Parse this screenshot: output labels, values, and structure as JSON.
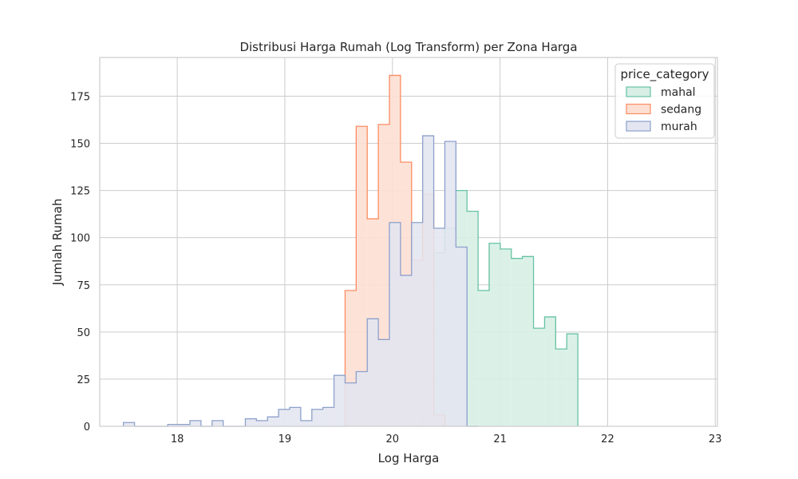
{
  "chart_data": {
    "type": "histogram-step",
    "title": "Distribusi Harga Rumah (Log Transform) per Zona Harga",
    "xlabel": "Log Harga",
    "ylabel": "Jumlah Rumah",
    "xlim": [
      17.28,
      23.02
    ],
    "ylim": [
      0,
      195.5
    ],
    "xticks": [
      18,
      19,
      20,
      21,
      22,
      23
    ],
    "yticks": [
      0,
      25,
      50,
      75,
      100,
      125,
      150,
      175
    ],
    "grid": true,
    "legend": {
      "title": "price_category",
      "position": "top-right"
    },
    "bin_start": 17.5,
    "bin_width": 0.103,
    "series": [
      {
        "name": "mahal",
        "color": "#66c2a5",
        "fill": "#d7efe6",
        "start_bin": 27,
        "counts": [
          6,
          92,
          105,
          125,
          114,
          72,
          97,
          94,
          89,
          90,
          52,
          58,
          41,
          49
        ]
      },
      {
        "name": "sedang",
        "color": "#fc8d62",
        "fill": "#fddfd3",
        "start_bin": 20,
        "counts": [
          72,
          159,
          110,
          160,
          186,
          140,
          88,
          123,
          6
        ]
      },
      {
        "name": "murah",
        "color": "#8da0cb",
        "fill": "#e3e6f1",
        "start_bin": 0,
        "counts": [
          2,
          0,
          0,
          0,
          1,
          1,
          3,
          0,
          3,
          0,
          0,
          4,
          3,
          5,
          9,
          10,
          3,
          9,
          10,
          27,
          23,
          29,
          57,
          46,
          108,
          80,
          108,
          154,
          105,
          151,
          95,
          0
        ]
      }
    ]
  }
}
